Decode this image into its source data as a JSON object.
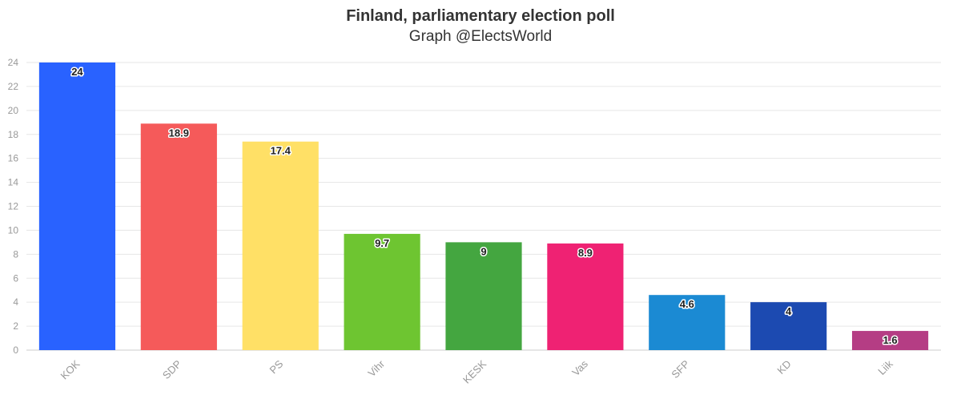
{
  "chart_data": {
    "type": "bar",
    "title": "Finland, parliamentary election poll",
    "subtitle": "Graph @ElectsWorld",
    "xlabel": "",
    "ylabel": "",
    "ylim": [
      0,
      24
    ],
    "yticks": [
      0,
      2,
      4,
      6,
      8,
      10,
      12,
      14,
      16,
      18,
      20,
      22,
      24
    ],
    "grid": true,
    "legend": "none",
    "categories": [
      "KOK",
      "SDP",
      "PS",
      "Vihr",
      "KESK",
      "Vas",
      "SFP",
      "KD",
      "Liik"
    ],
    "values": [
      24,
      18.9,
      17.4,
      9.7,
      9,
      8.9,
      4.6,
      4,
      1.6
    ],
    "value_labels": [
      "24",
      "18.9",
      "17.4",
      "9.7",
      "9",
      "8.9",
      "4.6",
      "4",
      "1.6"
    ],
    "colors": [
      "#2962FF",
      "#F55A5A",
      "#FFE066",
      "#6EC531",
      "#44A640",
      "#EF2273",
      "#1B8AD3",
      "#1C4AB1",
      "#B53D84"
    ]
  }
}
